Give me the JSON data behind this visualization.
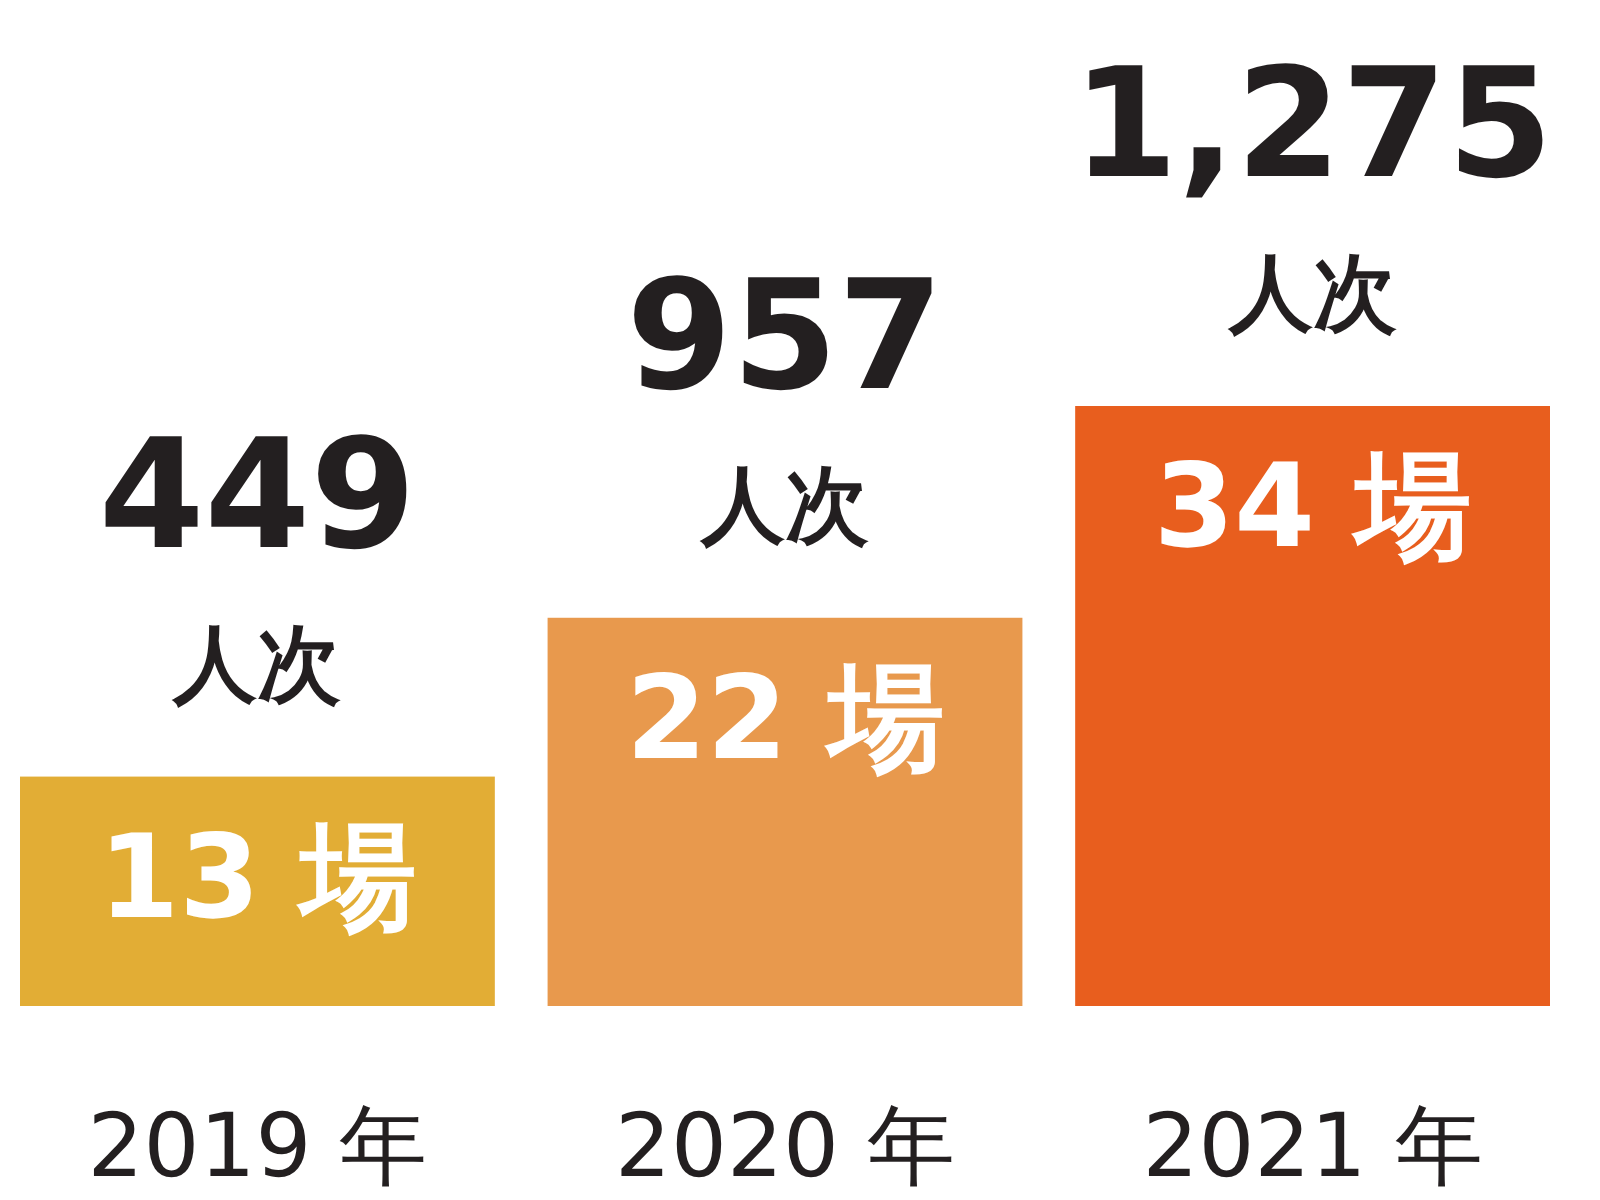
{
  "chart_data": {
    "type": "bar",
    "categories": [
      "2019 年",
      "2020 年",
      "2021 年"
    ],
    "values": [
      13,
      22,
      34
    ],
    "colors": [
      "#e2ad35",
      "#e8994d",
      "#e85e1e"
    ],
    "value_labels": [
      "13 場",
      "22 場",
      "34 場"
    ],
    "annotations": [
      {
        "text": "449 人次",
        "x": "2019 年",
        "y": 13
      },
      {
        "text": "957 人次",
        "x": "2020 年",
        "y": 22
      },
      {
        "text": "1,275 人次",
        "x": "2021 年",
        "y": 34
      }
    ]
  }
}
